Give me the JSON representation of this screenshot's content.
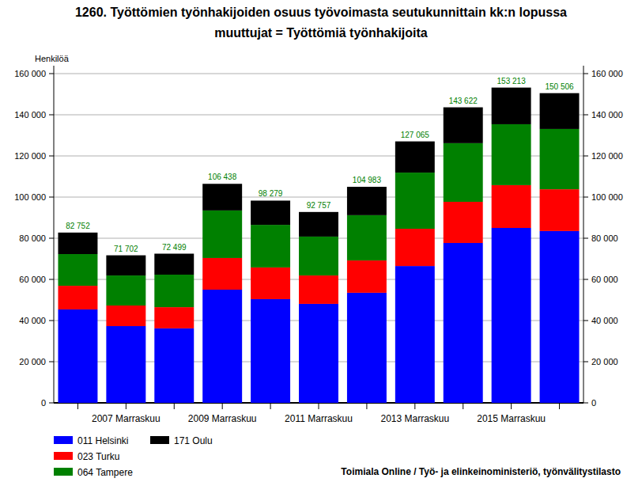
{
  "chart_data": {
    "type": "bar",
    "stacked": true,
    "title": "1260. Työttömien työnhakijoiden osuus työvoimasta seutukunnittain kk:n lopussa",
    "subtitle": "muuttujat = Työttömiä työnhakijoita",
    "y_label": "Henkilöä",
    "source": "Toimiala Online / Työ- ja elinkeinoministeriö, työnvälitystilasto",
    "categories": [
      null,
      "2007 Marraskuu",
      null,
      "2009 Marraskuu",
      null,
      "2011 Marraskuu",
      null,
      "2013 Marraskuu",
      null,
      "2015 Marraskuu",
      null
    ],
    "series": [
      {
        "name": "011 Helsinki",
        "color": "#0000ff",
        "values": [
          45400,
          37300,
          36200,
          55000,
          50400,
          48100,
          53500,
          66500,
          77700,
          85000,
          83500
        ]
      },
      {
        "name": "023 Turku",
        "color": "#ff0000",
        "values": [
          11500,
          10000,
          10300,
          15400,
          15400,
          13800,
          15700,
          18100,
          20000,
          20800,
          20300
        ]
      },
      {
        "name": "064 Tampere",
        "color": "#008000",
        "values": [
          15400,
          14600,
          15800,
          23100,
          20700,
          18900,
          22000,
          27300,
          28500,
          29600,
          29300
        ]
      },
      {
        "name": "171 Oulu",
        "color": "#000000",
        "values": [
          10452,
          9802,
          10199,
          12938,
          11779,
          11957,
          13783,
          15165,
          17422,
          17813,
          17406
        ]
      }
    ],
    "totals": [
      82752,
      71702,
      72499,
      106438,
      98279,
      92757,
      104983,
      127065,
      143622,
      153213,
      150506
    ],
    "total_labels": [
      "82 752",
      "71 702",
      "72 499",
      "106 438",
      "98 279",
      "92 757",
      "104 983",
      "127 065",
      "143 622",
      "153 213",
      "150 506"
    ],
    "ylim": [
      0,
      160000
    ],
    "yticks": [
      0,
      {
        "value": 20000,
        "label": "20 000"
      },
      {
        "value": 40000,
        "label": "40 000"
      },
      {
        "value": 60000,
        "label": "60 000"
      },
      {
        "value": 80000,
        "label": "80 000"
      },
      {
        "value": 100000,
        "label": "100 000"
      },
      {
        "value": 120000,
        "label": "120 000"
      },
      {
        "value": 140000,
        "label": "140 000"
      },
      {
        "value": 160000,
        "label": "160 000"
      }
    ],
    "grid": true,
    "legend": "bottom-left"
  }
}
